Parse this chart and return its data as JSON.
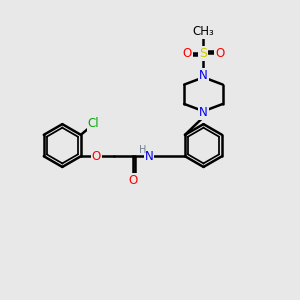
{
  "bg_color": "#e8e8e8",
  "bond_color": "#000000",
  "bond_width": 1.8,
  "atom_colors": {
    "C": "#000000",
    "H": "#708090",
    "N": "#0000ee",
    "O": "#ff0000",
    "S": "#cccc00",
    "Cl": "#00aa00"
  },
  "font_size": 8.5
}
